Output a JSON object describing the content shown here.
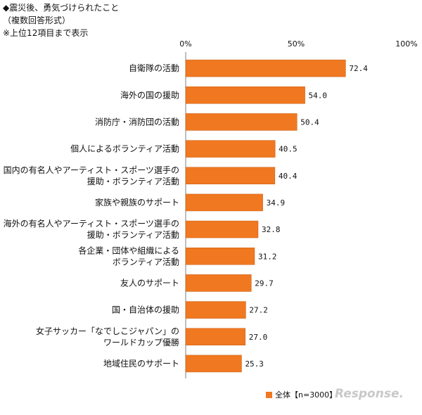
{
  "header": {
    "title": "◆震災後、勇気づけられたこと",
    "subtitle": "（複数回答形式）",
    "note": "※上位12項目まで表示"
  },
  "colors": {
    "bar": "#f07820",
    "bar_edge": "#c75a10",
    "axis": "#7f7f7f",
    "text": "#111111"
  },
  "chart_data": {
    "type": "bar",
    "orientation": "horizontal",
    "categories": [
      [
        "自衛隊の活動"
      ],
      [
        "海外の国の援助"
      ],
      [
        "消防庁・消防団の活動"
      ],
      [
        "個人によるボランティア活動"
      ],
      [
        "国内の有名人やアーティスト・スポーツ選手の",
        "援助・ボランティア活動"
      ],
      [
        "家族や親族のサポート"
      ],
      [
        "海外の有名人やアーティスト・スポーツ選手の",
        "援助・ボランティア活動"
      ],
      [
        "各企業・団体や組織による",
        "ボランティア活動"
      ],
      [
        "友人のサポート"
      ],
      [
        "国・自治体の援助"
      ],
      [
        "女子サッカー「なでしこジャパン」の",
        "ワールドカップ優勝"
      ],
      [
        "地域住民のサポート"
      ]
    ],
    "series": [
      {
        "name": "全体【n=3000】",
        "values": [
          72.4,
          54.0,
          50.4,
          40.5,
          40.4,
          34.9,
          32.8,
          31.2,
          29.7,
          27.2,
          27.0,
          25.3
        ]
      }
    ],
    "value_labels": [
      "72.4",
      "54.0",
      "50.4",
      "40.5",
      "40.4",
      "34.9",
      "32.8",
      "31.2",
      "29.7",
      "27.2",
      "27.0",
      "25.3"
    ],
    "xlim": [
      0,
      100
    ],
    "xticks": [
      0,
      50,
      100
    ],
    "xtick_labels": [
      "0%",
      "50%",
      "100%"
    ],
    "tick_position": "top",
    "legend": "bottom-right",
    "grid": false
  },
  "legend_label": "全体【n=3000】",
  "watermark": "Response."
}
